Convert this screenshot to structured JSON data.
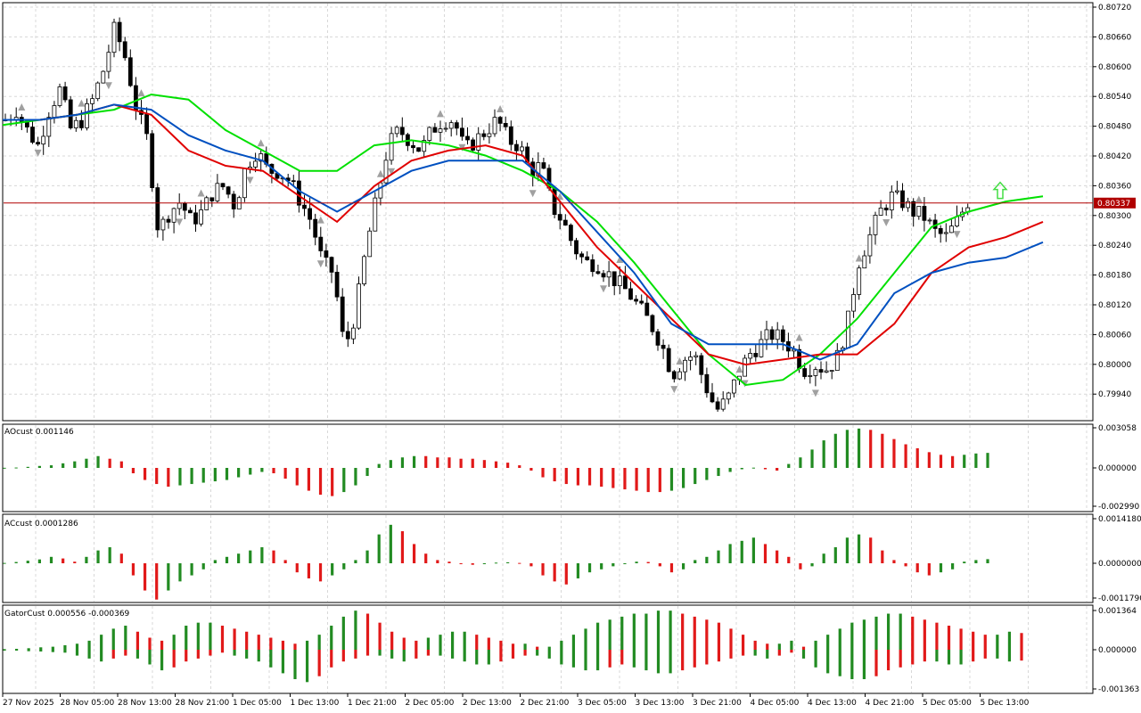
{
  "colors": {
    "background": "#ffffff",
    "grid": "#d8d8d8",
    "frame": "#000000",
    "bull_body": "#ffffff",
    "bear_body": "#000000",
    "ma_fast": "#00e000",
    "ma_mid": "#e00000",
    "ma_slow": "#0050c0",
    "up": "#228b22",
    "down": "#e11919",
    "price_line": "#b00000",
    "price_tag": "#b00000",
    "fractal": "#a0a0a0",
    "arrow": "#44dd44"
  },
  "price_panel": {
    "current_price": "0.80337",
    "axis_ticks": [
      "0.80720",
      "0.80660",
      "0.80600",
      "0.80540",
      "0.80480",
      "0.80420",
      "0.80360",
      "0.80300",
      "0.80240",
      "0.80180",
      "0.80120",
      "0.80060",
      "0.80000",
      "0.79940"
    ]
  },
  "ao_panel": {
    "label": "AOcust 0.001146",
    "axis_ticks": [
      "0.003058",
      "0.000000",
      "-0.002990"
    ]
  },
  "ac_panel": {
    "label": "ACcust 0.0001286",
    "axis_ticks": [
      "0.0014180",
      "0.0000000",
      "-0.0011790"
    ]
  },
  "gator_panel": {
    "label": "GatorCust 0.000556 -0.000369",
    "axis_ticks": [
      "0.001364",
      "0.000000",
      "-0.001363"
    ]
  },
  "time_axis": [
    "27 Nov 2025",
    "28 Nov 05:00",
    "28 Nov 13:00",
    "28 Nov 21:00",
    "1 Dec 05:00",
    "1 Dec 13:00",
    "1 Dec 21:00",
    "2 Dec 05:00",
    "2 Dec 13:00",
    "2 Dec 21:00",
    "3 Dec 05:00",
    "3 Dec 13:00",
    "3 Dec 21:00",
    "4 Dec 05:00",
    "4 Dec 13:00",
    "4 Dec 21:00",
    "5 Dec 05:00",
    "5 Dec 13:00"
  ],
  "chart_data": [
    {
      "type": "candlestick",
      "title": "",
      "ylim": [
        0.7991,
        0.8073
      ],
      "current_price": 0.80337,
      "x_labels": [
        "27 Nov 2025",
        "28 Nov 05:00",
        "28 Nov 13:00",
        "28 Nov 21:00",
        "1 Dec 05:00",
        "1 Dec 13:00",
        "1 Dec 21:00",
        "2 Dec 05:00",
        "2 Dec 13:00",
        "2 Dec 21:00",
        "3 Dec 05:00",
        "3 Dec 13:00",
        "3 Dec 21:00",
        "4 Dec 05:00",
        "4 Dec 13:00",
        "4 Dec 21:00",
        "5 Dec 05:00",
        "5 Dec 13:00"
      ],
      "close_path": [
        0.805,
        0.8052,
        0.8048,
        0.8045,
        0.8052,
        0.8056,
        0.8048,
        0.805,
        0.8054,
        0.806,
        0.8068,
        0.8062,
        0.8052,
        0.8046,
        0.8028,
        0.8032,
        0.8034,
        0.803,
        0.8032,
        0.8036,
        0.8037,
        0.8033,
        0.8041,
        0.8044,
        0.804,
        0.804,
        0.8038,
        0.8034,
        0.803,
        0.8022,
        0.802,
        0.8005,
        0.8012,
        0.8025,
        0.8035,
        0.8045,
        0.8048,
        0.8046,
        0.8044,
        0.8048,
        0.805,
        0.805,
        0.8044,
        0.8046,
        0.8048,
        0.805,
        0.8046,
        0.8045,
        0.804,
        0.8041,
        0.8033,
        0.803,
        0.8025,
        0.8022,
        0.8022,
        0.802,
        0.8018,
        0.8016,
        0.8013,
        0.801,
        0.8006,
        0.8,
        0.8003,
        0.8004,
        0.7998,
        0.7993,
        0.7995,
        0.8,
        0.8004,
        0.8006,
        0.8008,
        0.8007,
        0.8005,
        0.8001,
        0.8002,
        0.8001,
        0.8003,
        0.801,
        0.8022,
        0.8027,
        0.8032,
        0.8035,
        0.8034,
        0.8032,
        0.8031,
        0.8028,
        0.8027,
        0.803,
        0.8034
      ],
      "series": [
        {
          "name": "",
          "values": [
            0.8049,
            0.805,
            0.8051,
            0.8052,
            0.8055,
            0.8054,
            0.8048,
            0.8044,
            0.804,
            0.804,
            0.8045,
            0.8046,
            0.8045,
            0.8043,
            0.804,
            0.8036,
            0.803,
            0.8022,
            0.8013,
            0.8004,
            0.7998,
            0.7999,
            0.8004,
            0.8011,
            0.802,
            0.8029,
            0.8032,
            0.8034,
            0.8035
          ]
        },
        {
          "name": "",
          "values": [
            0.805,
            0.805,
            0.8051,
            0.8053,
            0.8051,
            0.8044,
            0.8041,
            0.804,
            0.8035,
            0.803,
            0.8037,
            0.8042,
            0.8044,
            0.8045,
            0.8043,
            0.8034,
            0.8025,
            0.8018,
            0.8011,
            0.8004,
            0.8002,
            0.8003,
            0.8004,
            0.8004,
            0.801,
            0.802,
            0.8025,
            0.8027,
            0.803
          ]
        },
        {
          "name": "",
          "values": [
            0.805,
            0.805,
            0.8051,
            0.8053,
            0.8052,
            0.8047,
            0.8044,
            0.8042,
            0.8036,
            0.8032,
            0.8036,
            0.804,
            0.8042,
            0.8042,
            0.8042,
            0.8036,
            0.8028,
            0.802,
            0.801,
            0.8006,
            0.8006,
            0.8006,
            0.8003,
            0.8006,
            0.8016,
            0.802,
            0.8022,
            0.8023,
            0.8026
          ]
        }
      ]
    },
    {
      "type": "bar",
      "title": "AOcust 0.001146",
      "ylim": [
        -0.00299,
        0.003058
      ],
      "values": [
        1e-05,
        3e-05,
        8e-05,
        0.00015,
        0.0002,
        0.00035,
        0.0005,
        0.0007,
        0.0009,
        0.0007,
        0.0005,
        -0.0004,
        -0.0009,
        -0.0012,
        -0.0014,
        -0.0013,
        -0.0012,
        -0.0011,
        -0.001,
        -0.0009,
        -0.0007,
        -0.0005,
        -0.0003,
        -0.0004,
        -0.0008,
        -0.0013,
        -0.0017,
        -0.002,
        -0.0021,
        -0.0018,
        -0.0013,
        -0.0006,
        0.0003,
        0.0006,
        0.0008,
        0.0009,
        0.0009,
        0.0008,
        0.0008,
        0.0007,
        0.0007,
        0.0006,
        0.0005,
        0.0004,
        0.0002,
        -0.0002,
        -0.0007,
        -0.001,
        -0.0012,
        -0.0013,
        -0.0013,
        -0.0014,
        -0.0015,
        -0.0016,
        -0.0017,
        -0.0018,
        -0.0018,
        -0.0017,
        -0.0015,
        -0.0012,
        -0.0009,
        -0.0006,
        -0.0003,
        -0.0001,
        2e-05,
        -0.0001,
        -0.0002,
        0.0003,
        0.0008,
        0.0014,
        0.0021,
        0.0026,
        0.0029,
        0.003,
        0.0029,
        0.0026,
        0.0022,
        0.0018,
        0.0015,
        0.0012,
        0.001,
        0.0009,
        0.001,
        0.0011,
        0.001146
      ],
      "colors": [
        "up",
        "up",
        "up",
        "up",
        "up",
        "up",
        "up",
        "up",
        "up",
        "down",
        "down",
        "down",
        "down",
        "down",
        "down",
        "up",
        "up",
        "up",
        "up",
        "up",
        "up",
        "up",
        "up",
        "down",
        "down",
        "down",
        "down",
        "down",
        "down",
        "up",
        "up",
        "up",
        "up",
        "up",
        "up",
        "up",
        "down",
        "down",
        "down",
        "down",
        "down",
        "down",
        "down",
        "down",
        "down",
        "down",
        "down",
        "down",
        "down",
        "down",
        "down",
        "down",
        "down",
        "down",
        "down",
        "down",
        "down",
        "up",
        "up",
        "up",
        "up",
        "up",
        "up",
        "up",
        "up",
        "down",
        "down",
        "up",
        "up",
        "up",
        "up",
        "up",
        "up",
        "up",
        "down",
        "down",
        "down",
        "down",
        "down",
        "down",
        "down",
        "down",
        "up",
        "up",
        "up"
      ]
    },
    {
      "type": "bar",
      "title": "ACcust 0.0001286",
      "ylim": [
        -0.001179,
        0.001418
      ],
      "values": [
        1e-05,
        4e-05,
        8e-05,
        0.00012,
        0.0002,
        0.00015,
        5e-05,
        0.0002,
        0.0004,
        0.0005,
        0.0003,
        -0.0004,
        -0.0009,
        -0.0012,
        -0.0009,
        -0.0006,
        -0.0004,
        -0.0002,
        0.0001,
        0.0002,
        0.0003,
        0.0004,
        0.0005,
        0.0004,
        0.0001,
        -0.0003,
        -0.0005,
        -0.0006,
        -0.0004,
        -0.0002,
        0.0001,
        0.0004,
        0.0009,
        0.0012,
        0.001,
        0.0006,
        0.0003,
        0.0001,
        5e-05,
        -3e-05,
        -5e-05,
        -2e-05,
        2e-05,
        3e-05,
        1e-05,
        -0.0001,
        -0.0004,
        -0.0006,
        -0.0007,
        -0.0005,
        -0.0003,
        -0.0002,
        -0.0001,
        -3e-05,
        5e-05,
        4e-05,
        -0.0001,
        -0.0003,
        -0.0002,
        0.0001,
        0.0002,
        0.0004,
        0.0006,
        0.0007,
        0.0008,
        0.0006,
        0.0004,
        0.0002,
        -0.0002,
        -0.0001,
        0.0003,
        0.0005,
        0.0008,
        0.0009,
        0.0008,
        0.0004,
        0.0001,
        -0.0001,
        -0.0003,
        -0.0004,
        -0.0003,
        -0.0002,
        5e-05,
        0.0001,
        0.0001286
      ],
      "colors": [
        "up",
        "up",
        "up",
        "up",
        "up",
        "down",
        "down",
        "up",
        "up",
        "up",
        "down",
        "down",
        "down",
        "down",
        "up",
        "up",
        "up",
        "up",
        "up",
        "up",
        "up",
        "up",
        "up",
        "down",
        "down",
        "down",
        "down",
        "down",
        "up",
        "up",
        "up",
        "up",
        "up",
        "up",
        "down",
        "down",
        "down",
        "down",
        "down",
        "down",
        "down",
        "up",
        "up",
        "up",
        "down",
        "down",
        "down",
        "down",
        "down",
        "up",
        "up",
        "up",
        "up",
        "up",
        "up",
        "down",
        "down",
        "down",
        "up",
        "up",
        "up",
        "up",
        "up",
        "up",
        "up",
        "down",
        "down",
        "down",
        "down",
        "up",
        "up",
        "up",
        "up",
        "up",
        "down",
        "down",
        "down",
        "down",
        "down",
        "down",
        "up",
        "up",
        "up",
        "up",
        "up"
      ]
    },
    {
      "type": "bar",
      "title": "GatorCust 0.000556 -0.000369",
      "ylim": [
        -0.001363,
        0.001364
      ],
      "upper": [
        2e-05,
        3e-05,
        5e-05,
        8e-05,
        0.0001,
        0.00015,
        0.0002,
        0.0003,
        0.0005,
        0.0007,
        0.0008,
        0.0006,
        0.0004,
        0.0003,
        0.0005,
        0.0008,
        0.0009,
        0.0009,
        0.0008,
        0.0007,
        0.0006,
        0.0005,
        0.0004,
        0.0003,
        0.0002,
        0.0003,
        0.0005,
        0.0008,
        0.0011,
        0.0013,
        0.0012,
        0.0009,
        0.0006,
        0.0004,
        0.0003,
        0.0004,
        0.0005,
        0.0006,
        0.0006,
        0.0005,
        0.0004,
        0.0003,
        0.0002,
        0.0002,
        0.0001,
        0.0001,
        0.0003,
        0.0005,
        0.0007,
        0.0009,
        0.001,
        0.0011,
        0.0012,
        0.0012,
        0.0013,
        0.0013,
        0.0012,
        0.0011,
        0.001,
        0.0009,
        0.0007,
        0.0005,
        0.0003,
        0.0002,
        0.0002,
        0.0003,
        0.0001,
        0.0003,
        0.0005,
        0.0007,
        0.0009,
        0.001,
        0.0011,
        0.0012,
        0.0012,
        0.0011,
        0.001,
        0.0009,
        0.0008,
        0.0007,
        0.0006,
        0.0005,
        0.0005,
        0.0006,
        0.000556
      ],
      "lower": [
        -2e-05,
        -3e-05,
        -5e-05,
        -6e-05,
        -8e-05,
        -0.0001,
        -0.0002,
        -0.0003,
        -0.0004,
        -0.0003,
        -0.0002,
        -0.0003,
        -0.0005,
        -0.0007,
        -0.0006,
        -0.0004,
        -0.0003,
        -0.0002,
        -0.0001,
        -0.0002,
        -0.0003,
        -0.0004,
        -0.0006,
        -0.0008,
        -0.001,
        -0.0011,
        -0.0009,
        -0.0006,
        -0.0004,
        -0.0003,
        -0.0002,
        -0.0002,
        -0.0003,
        -0.0004,
        -0.0003,
        -0.0002,
        -0.0002,
        -0.0003,
        -0.0004,
        -0.0005,
        -0.0005,
        -0.0004,
        -0.0003,
        -0.0002,
        -0.0002,
        -0.0003,
        -0.0005,
        -0.0006,
        -0.0007,
        -0.0007,
        -0.0006,
        -0.0005,
        -0.0006,
        -0.0007,
        -0.0008,
        -0.0008,
        -0.0007,
        -0.0006,
        -0.0005,
        -0.0004,
        -0.0003,
        -0.0002,
        -0.0002,
        -0.0003,
        -0.0002,
        -0.0001,
        -0.0003,
        -0.0006,
        -0.0008,
        -0.0009,
        -0.001,
        -0.001,
        -0.0009,
        -0.0007,
        -0.0006,
        -0.0005,
        -0.0004,
        -0.0004,
        -0.0005,
        -0.0005,
        -0.0004,
        -0.0003,
        -0.0003,
        -0.0004,
        -0.000369
      ]
    }
  ]
}
